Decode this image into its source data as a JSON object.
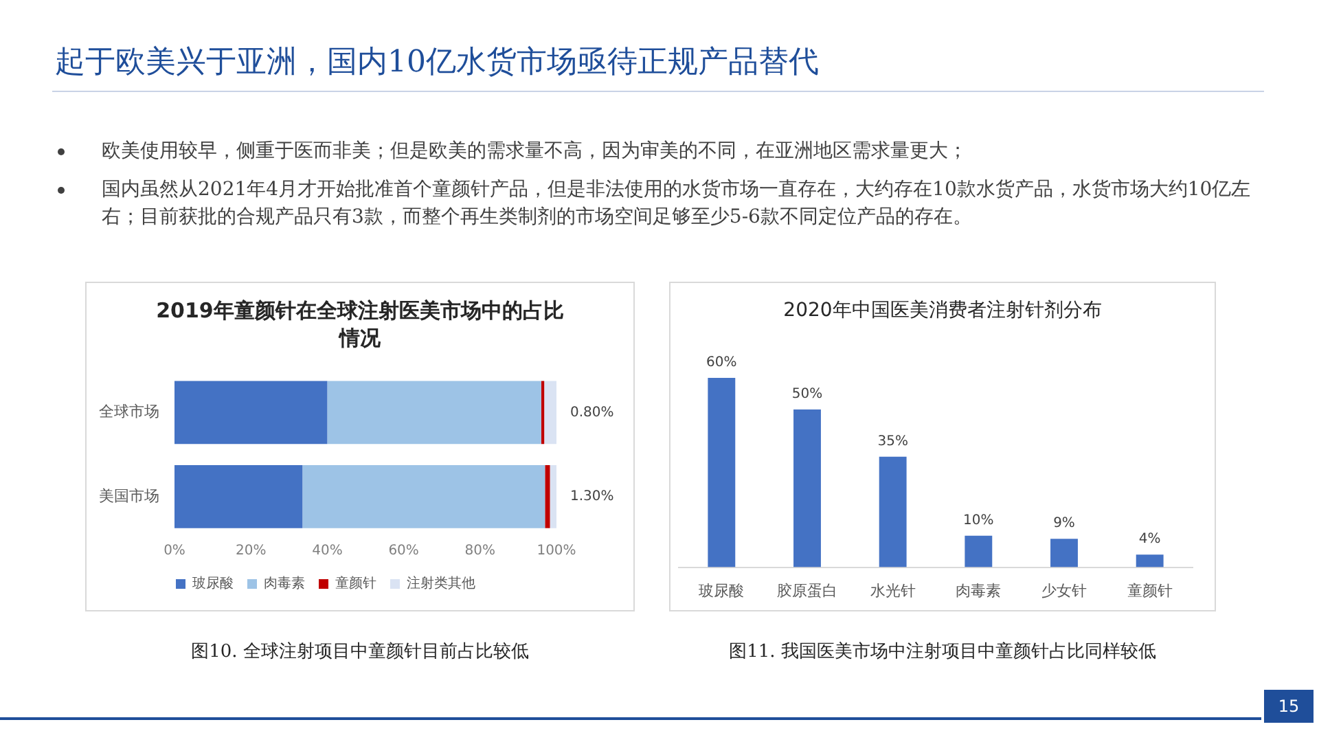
{
  "chart_data": [
    {
      "type": "bar",
      "orientation": "horizontal",
      "stacked": true,
      "title": "2019年童颜针在全球注射医美市场中的占比情况",
      "categories": [
        "全球市场",
        "美国市场"
      ],
      "series": [
        {
          "name": "玻尿酸",
          "color": "#4472c4",
          "values": [
            40,
            33.5
          ]
        },
        {
          "name": "肉毒素",
          "color": "#9dc3e6",
          "values": [
            56,
            63.5
          ]
        },
        {
          "name": "童颜针",
          "color": "#c00000",
          "values": [
            0.8,
            1.3
          ],
          "value_labels": [
            "0.80%",
            "1.30%"
          ]
        },
        {
          "name": "注射类其他",
          "color": "#dae3f3",
          "values": [
            3.2,
            1.7
          ]
        }
      ],
      "xlim": [
        0,
        100
      ],
      "xticks": [
        {
          "value": 0,
          "label": "0%"
        },
        {
          "value": 20,
          "label": "20%"
        },
        {
          "value": 40,
          "label": "40%"
        },
        {
          "value": 60,
          "label": "60%"
        },
        {
          "value": 80,
          "label": "80%"
        },
        {
          "value": 100,
          "label": "100%"
        }
      ],
      "grid": false,
      "legend": "bottom",
      "annotations": [
        "起于欧美兴于亚洲，国内10亿水货市场亟待正规产品替代",
        "欧美使用较早，侧重于医而非美；但是欧美的需求量不高，因为审美的不同，在亚洲地区需求量更大；",
        "国内虽然从2021年4月才开始批准首个童颜针产品，但是非法使用的水货市场一直存在，大约存在10款水货产品，水货市场大约10亿左右；目前获批的合规产品只有3款，而整个再生类制剂的市场空间足够至少5-6款不同定位产品的存在。",
        "图10. 全球注射项目中童颜针目前占比较低"
      ]
    },
    {
      "type": "bar",
      "title": "2020年中国医美消费者注射针剂分布",
      "categories": [
        "玻尿酸",
        "胶原蛋白",
        "水光针",
        "肉毒素",
        "少女针",
        "童颜针"
      ],
      "values": [
        60,
        50,
        35,
        10,
        9,
        4
      ],
      "color": "#4472c4",
      "value_labels": [
        "60%",
        "50%",
        "35%",
        "10%",
        "9%",
        "4%"
      ],
      "tick_labels": "x",
      "grid": false,
      "legend": false,
      "annotations": [
        "图11. 我国医美市场中注射项目中童颜针占比同样较低",
        "15"
      ]
    }
  ]
}
